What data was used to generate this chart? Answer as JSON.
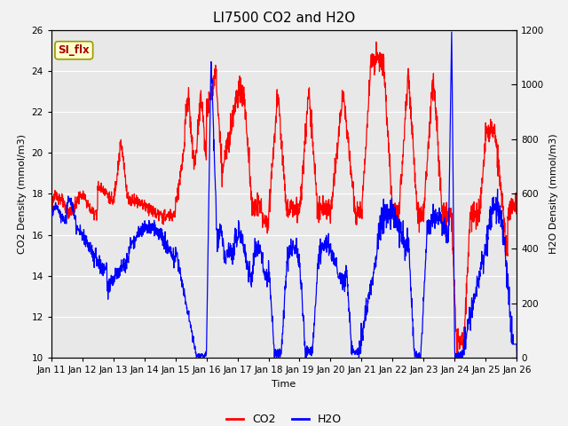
{
  "title": "LI7500 CO2 and H2O",
  "xlabel": "Time",
  "ylabel_left": "CO2 Density (mmol/m3)",
  "ylabel_right": "H2O Density (mmol/m3)",
  "xlim": [
    0,
    15
  ],
  "ylim_left": [
    10,
    26
  ],
  "ylim_right": [
    0,
    1200
  ],
  "xtick_labels": [
    "Jan 11",
    "Jan 12",
    "Jan 13",
    "Jan 14",
    "Jan 15",
    "Jan 16",
    "Jan 17",
    "Jan 18",
    "Jan 19",
    "Jan 20",
    "Jan 21",
    "Jan 22",
    "Jan 23",
    "Jan 24",
    "Jan 25",
    "Jan 26"
  ],
  "yticks_left": [
    10,
    12,
    14,
    16,
    18,
    20,
    22,
    24,
    26
  ],
  "yticks_right": [
    0,
    200,
    400,
    600,
    800,
    1000,
    1200
  ],
  "legend_entries": [
    "CO2",
    "H2O"
  ],
  "co2_color": "#FF0000",
  "h2o_color": "#0000FF",
  "annotation_text": "SI_flx",
  "annotation_bg": "#FFFFCC",
  "annotation_border": "#999900",
  "plot_bg_color": "#E8E8E8",
  "fig_bg_color": "#F2F2F2",
  "grid_color": "#FFFFFF",
  "title_fontsize": 11,
  "label_fontsize": 8,
  "tick_fontsize": 7.5
}
